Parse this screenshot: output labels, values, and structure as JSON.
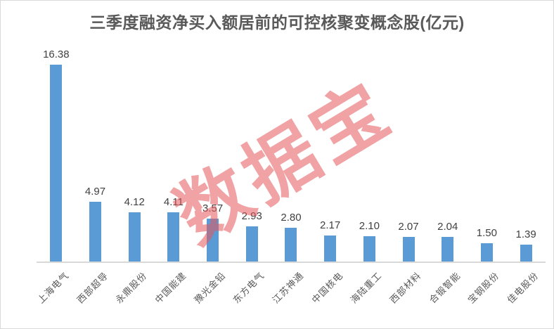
{
  "title": "三季度融资净买入额居前的可控核聚变概念股(亿元)",
  "watermark": "数据宝",
  "colors": {
    "bar": "#5b9bd5",
    "title_text": "#595959",
    "value_label": "#404040",
    "category_label": "#595959",
    "axis_line": "#d9d9d9",
    "watermark": "rgba(229,85,90,0.55)",
    "border": "#d9d9d9",
    "background": "#ffffff"
  },
  "chart_data": {
    "type": "bar",
    "title": "三季度融资净买入额居前的可控核聚变概念股(亿元)",
    "categories": [
      "上海电气",
      "西部超导",
      "永鼎股份",
      "中国能建",
      "豫光金铅",
      "东方电气",
      "江苏神通",
      "中国核电",
      "海陆重工",
      "西部材料",
      "合锻智能",
      "宝钢股份",
      "佳电股份"
    ],
    "values": [
      16.38,
      4.97,
      4.12,
      4.11,
      3.57,
      2.93,
      2.8,
      2.17,
      2.1,
      2.07,
      2.04,
      1.5,
      1.39
    ],
    "unit": "亿元",
    "xlabel": "",
    "ylabel": "",
    "ylim": [
      0,
      17
    ],
    "grid": false,
    "legend": "none",
    "data_labels": "above-bars",
    "category_label_rotation_deg": -45
  }
}
